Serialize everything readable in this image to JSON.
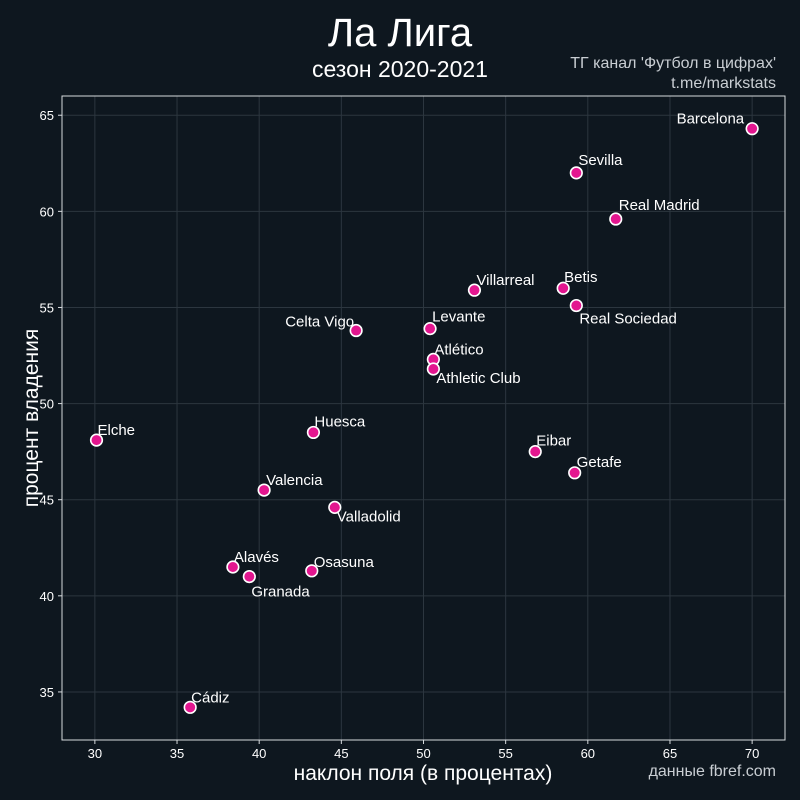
{
  "header": {
    "title": "Ла Лига",
    "subtitle": "сезон 2020-2021",
    "credit_line1": "ТГ канал 'Футбол в цифрах'",
    "credit_line2": "t.me/markstats",
    "source": "данные fbref.com"
  },
  "colors": {
    "background": "#0e171f",
    "point": "#e3168f",
    "point_edge": "#ffffff",
    "grid": "#2c363f"
  },
  "chart_data": {
    "type": "scatter",
    "title": "Ла Лига",
    "subtitle": "сезон 2020-2021",
    "xlabel": "наклон поля (в процентах)",
    "ylabel": "процент владения",
    "xlim": [
      28,
      72
    ],
    "ylim": [
      32.5,
      66
    ],
    "xticks": [
      30,
      35,
      40,
      45,
      50,
      55,
      60,
      65,
      70
    ],
    "yticks": [
      35,
      40,
      45,
      50,
      55,
      60,
      65
    ],
    "grid": true,
    "points": [
      {
        "label": "Barcelona",
        "x": 70.0,
        "y": 64.3
      },
      {
        "label": "Sevilla",
        "x": 59.3,
        "y": 62.0
      },
      {
        "label": "Real Madrid",
        "x": 61.7,
        "y": 59.6
      },
      {
        "label": "Betis",
        "x": 58.5,
        "y": 56.0
      },
      {
        "label": "Villarreal",
        "x": 53.1,
        "y": 55.9
      },
      {
        "label": "Real Sociedad",
        "x": 59.3,
        "y": 55.1
      },
      {
        "label": "Levante",
        "x": 50.4,
        "y": 53.9
      },
      {
        "label": "Celta Vigo",
        "x": 45.9,
        "y": 53.8
      },
      {
        "label": "Atlético",
        "x": 50.6,
        "y": 52.3
      },
      {
        "label": "Athletic Club",
        "x": 50.6,
        "y": 51.8
      },
      {
        "label": "Huesca",
        "x": 43.3,
        "y": 48.5
      },
      {
        "label": "Elche",
        "x": 30.1,
        "y": 48.1
      },
      {
        "label": "Eibar",
        "x": 56.8,
        "y": 47.5
      },
      {
        "label": "Getafe",
        "x": 59.2,
        "y": 46.4
      },
      {
        "label": "Valencia",
        "x": 40.3,
        "y": 45.5
      },
      {
        "label": "Valladolid",
        "x": 44.6,
        "y": 44.6
      },
      {
        "label": "Alavés",
        "x": 38.4,
        "y": 41.5
      },
      {
        "label": "Osasuna",
        "x": 43.2,
        "y": 41.3
      },
      {
        "label": "Granada",
        "x": 39.4,
        "y": 41.0
      },
      {
        "label": "Cádiz",
        "x": 35.8,
        "y": 34.2
      }
    ]
  }
}
